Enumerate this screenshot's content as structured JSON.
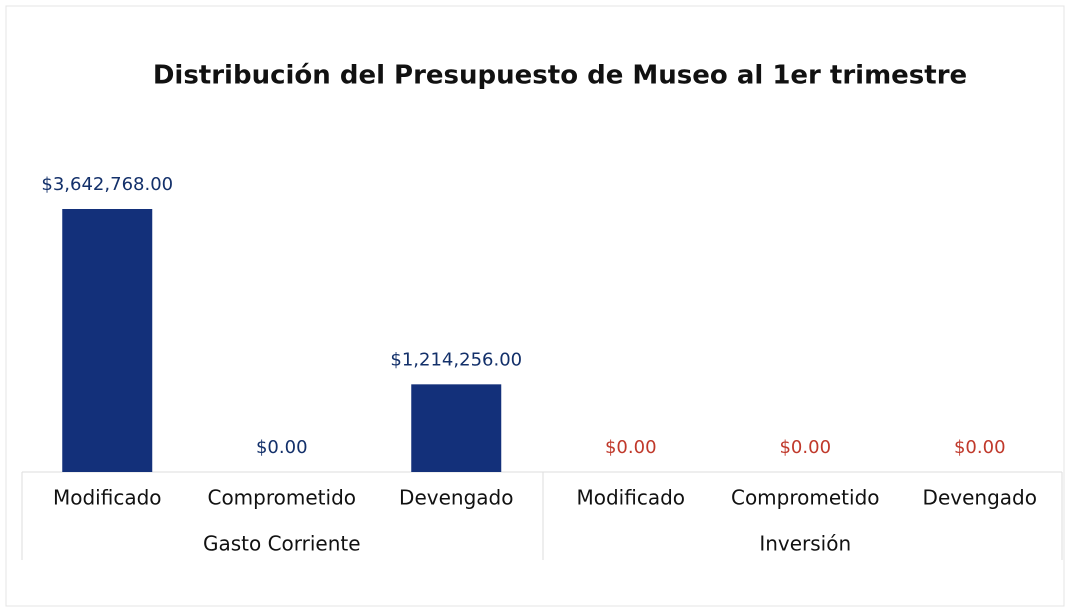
{
  "chart_data": {
    "type": "bar",
    "title": "Distribución del Presupuesto de Museo al 1er trimestre",
    "series": [
      {
        "name": "Gasto Corriente",
        "color": "#13307a",
        "label_color": "#13306a",
        "categories": [
          "Modificado",
          "Comprometido",
          "Devengado"
        ],
        "values": [
          3642768,
          0,
          1214256
        ],
        "value_labels": [
          "$3,642,768.00",
          "$0.00",
          "$1,214,256.00"
        ]
      },
      {
        "name": "Inversión",
        "color": "#13307a",
        "label_color": "#c0392b",
        "categories": [
          "Modificado",
          "Comprometido",
          "Devengado"
        ],
        "values": [
          0,
          0,
          0
        ],
        "value_labels": [
          "$0.00",
          "$0.00",
          "$0.00"
        ]
      }
    ]
  }
}
